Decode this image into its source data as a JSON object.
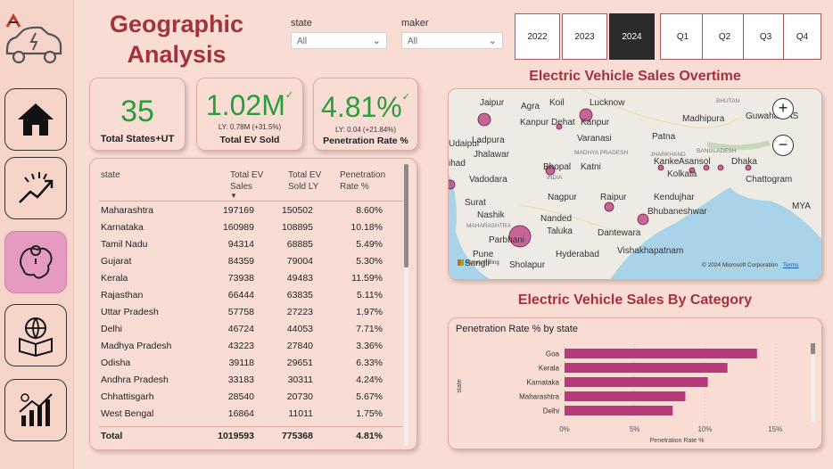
{
  "app": {
    "logo_icon": "ev-car-logo-icon"
  },
  "nav": [
    {
      "name": "home",
      "icon": "home-icon"
    },
    {
      "name": "trend",
      "icon": "trend-chart-icon"
    },
    {
      "name": "geography",
      "icon": "map-icon",
      "active": true
    },
    {
      "name": "category",
      "icon": "globe-box-icon"
    },
    {
      "name": "growth",
      "icon": "bar-growth-icon"
    }
  ],
  "title": {
    "line1": "Geographic",
    "line2": "Analysis"
  },
  "filters": {
    "state": {
      "label": "state",
      "value": "All"
    },
    "maker": {
      "label": "maker",
      "value": "All"
    }
  },
  "years": [
    "2022",
    "2023",
    "2024"
  ],
  "selected_year": "2024",
  "quarters": [
    "Q1",
    "Q2",
    "Q3",
    "Q4"
  ],
  "kpis": {
    "states": {
      "value": "35",
      "label": "Total States+UT"
    },
    "ev_sold": {
      "value": "1.02M",
      "sub": "LY: 0.78M (+31.5%)",
      "label": "Total EV Sold"
    },
    "pen_rate": {
      "value": "4.81%",
      "sub": "LY: 0.04 (+21.84%)",
      "label": "Penetration Rate %"
    }
  },
  "table": {
    "headers": {
      "state": "state",
      "sales": "Total EV Sales",
      "ly": "Total EV Sold LY",
      "rate": "Penetration Rate %"
    },
    "rows": [
      [
        "Maharashtra",
        "197169",
        "150502",
        "8.60%"
      ],
      [
        "Karnataka",
        "160989",
        "108895",
        "10.18%"
      ],
      [
        "Tamil Nadu",
        "94314",
        "68885",
        "5.49%"
      ],
      [
        "Gujarat",
        "84359",
        "79004",
        "5.30%"
      ],
      [
        "Kerala",
        "73938",
        "49483",
        "11.59%"
      ],
      [
        "Rajasthan",
        "66444",
        "63835",
        "5.11%"
      ],
      [
        "Uttar Pradesh",
        "57758",
        "27223",
        "1.97%"
      ],
      [
        "Delhi",
        "46724",
        "44053",
        "7.71%"
      ],
      [
        "Madhya Pradesh",
        "43223",
        "27840",
        "3.36%"
      ],
      [
        "Odisha",
        "39118",
        "29651",
        "6.33%"
      ],
      [
        "Andhra Pradesh",
        "33183",
        "30311",
        "4.24%"
      ],
      [
        "Chhattisgarh",
        "28540",
        "20730",
        "5.67%"
      ],
      [
        "West Bengal",
        "16864",
        "11011",
        "1.75%"
      ]
    ],
    "total": [
      "Total",
      "1019593",
      "775368",
      "4.81%"
    ]
  },
  "map": {
    "title": "Electric Vehicle Sales Overtime",
    "places": [
      "Jaipur",
      "Agra",
      "Koil",
      "Lucknow",
      "BHUTAN",
      "Madhipura",
      "Guwahati",
      "Kanpur Dehat",
      "Kanpur",
      "AS",
      "Udaipur",
      "Varanasi",
      "Patna",
      "Ladpura",
      "Jhalawar",
      "MADHYA PRADESH",
      "JHARKHAND",
      "BANGLADESH",
      "Bhopal",
      "Katni",
      "Kanke",
      "Asansol",
      "Dhaka",
      "ihad",
      "Vadodara",
      "INDIA",
      "Kolkata",
      "Chattogram",
      "Surat",
      "Nagpur",
      "Raipur",
      "Kendujhar",
      "MYA",
      "Nashik",
      "Nanded",
      "Bhubaneshwar",
      "Taluka",
      "Dantewara",
      "MAHARASHTRA",
      "Parbhani",
      "Pune",
      "Hyderabad",
      "Vishakhapatnam",
      "Sangli",
      "Sholapur"
    ],
    "copyright": "© 2024 Microsoft Corporation",
    "terms": "Terms",
    "ms_logo": "Microsoft Bing",
    "zoom_in": "+",
    "zoom_out": "−"
  },
  "category": {
    "title": "Electric Vehicle Sales By Category"
  },
  "chart_data": {
    "type": "bar",
    "orientation": "horizontal",
    "title": "Penetration Rate % by state",
    "ylabel": "state",
    "xlabel": "Penetration Rate %",
    "categories": [
      "Goa",
      "Kerala",
      "Karnataka",
      "Maharashtra",
      "Delhi"
    ],
    "values": [
      13.7,
      11.6,
      10.2,
      8.6,
      7.7
    ],
    "xticks": [
      "0%",
      "5%",
      "10%",
      "15%"
    ],
    "xlim": [
      0,
      16
    ],
    "color": "#b8397e"
  }
}
